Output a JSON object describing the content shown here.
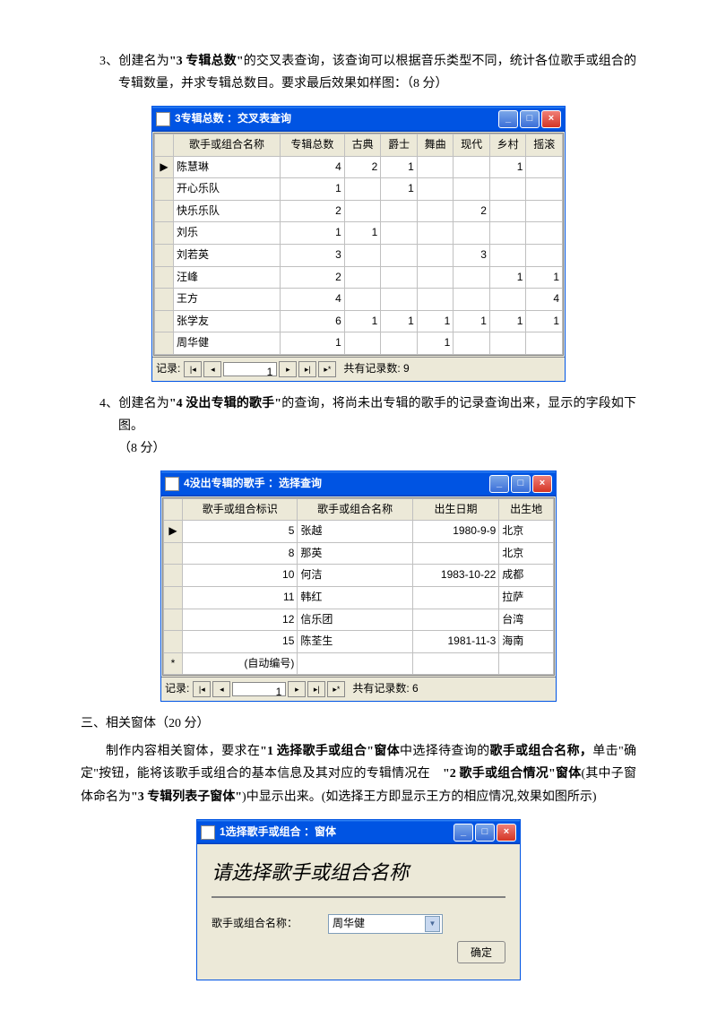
{
  "q3": {
    "num": "3、",
    "t1": "创建名为",
    "bold": "\"3 专辑总数\"",
    "t2": "的交叉表查询，",
    "t3": "该查询可以根据音乐类型不同，统计各位歌手或组合的专辑数量，并求专辑总数目。要求最后效果如样图：（8 分）"
  },
  "win1": {
    "title": "3专辑总数 ：交叉表查询",
    "cols": [
      "",
      "歌手或组合名称",
      "专辑总数",
      "古典",
      "爵士",
      "舞曲",
      "现代",
      "乡村",
      "摇滚"
    ],
    "rows": [
      [
        "▶",
        "陈慧琳",
        "4",
        "2",
        "1",
        "",
        "",
        "1",
        ""
      ],
      [
        "",
        "开心乐队",
        "1",
        "",
        "1",
        "",
        "",
        "",
        ""
      ],
      [
        "",
        "快乐乐队",
        "2",
        "",
        "",
        "",
        "2",
        "",
        ""
      ],
      [
        "",
        "刘乐",
        "1",
        "1",
        "",
        "",
        "",
        "",
        ""
      ],
      [
        "",
        "刘若英",
        "3",
        "",
        "",
        "",
        "3",
        "",
        ""
      ],
      [
        "",
        "汪峰",
        "2",
        "",
        "",
        "",
        "",
        "1",
        "1"
      ],
      [
        "",
        "王方",
        "4",
        "",
        "",
        "",
        "",
        "",
        "4"
      ],
      [
        "",
        "张学友",
        "6",
        "1",
        "1",
        "1",
        "1",
        "1",
        "1"
      ],
      [
        "",
        "周华健",
        "1",
        "",
        "",
        "1",
        "",
        "",
        ""
      ]
    ],
    "nav_label": "记录:",
    "nav_pos": "1",
    "nav_count": "共有记录数: 9"
  },
  "q4": {
    "num": "4、",
    "t1": "创建名为",
    "bold": "\"4 没出专辑的歌手\"",
    "t2": "的查询，将尚未出专辑的歌手的记录查询出来，显示的字段如下图。",
    "t3": "（8 分）"
  },
  "win2": {
    "title": "4没出专辑的歌手 ：选择查询",
    "cols": [
      "",
      "歌手或组合标识",
      "歌手或组合名称",
      "出生日期",
      "出生地"
    ],
    "rows": [
      [
        "▶",
        "5",
        "张越",
        "1980-9-9",
        "北京"
      ],
      [
        "",
        "8",
        "那英",
        "",
        "北京"
      ],
      [
        "",
        "10",
        "何洁",
        "1983-10-22",
        "成都"
      ],
      [
        "",
        "11",
        "韩红",
        "",
        "拉萨"
      ],
      [
        "",
        "12",
        "信乐团",
        "",
        "台湾"
      ],
      [
        "",
        "15",
        "陈荃生",
        "1981-11-3",
        "海南"
      ],
      [
        "*",
        "(自动编号)",
        "",
        "",
        ""
      ]
    ],
    "nav_label": "记录:",
    "nav_pos": "1",
    "nav_count": "共有记录数: 6"
  },
  "sec3": {
    "h": "三、相关窗体（20 分）",
    "p1a": "制作内容相关窗体，要求在",
    "b1": "\"1 选择歌手或组合\"窗体",
    "p1b": "中选择待查询的",
    "b2": "歌手或组合名称，",
    "p1c": "单击\"确定\"按钮，能将该歌手或组合的基本信息及其对应的专辑情况在　",
    "b3": "\"2 歌手或组合情况\"窗体",
    "p1d": "(其中子窗体命名为",
    "b4": "\"3 专辑列表子窗体\"",
    "p1e": ")中显示出来。(如选择王方即显示王方的相应情况,效果如图所示)"
  },
  "win3": {
    "title": "1选择歌手或组合 ：窗体",
    "header": "请选择歌手或组合名称",
    "label": "歌手或组合名称：",
    "value": "周华健",
    "btn": "确定"
  },
  "colors": {
    "titlebar": "#0054e3",
    "close": "#d43525",
    "panel": "#ece9d8",
    "border": "#c0c0c0"
  }
}
